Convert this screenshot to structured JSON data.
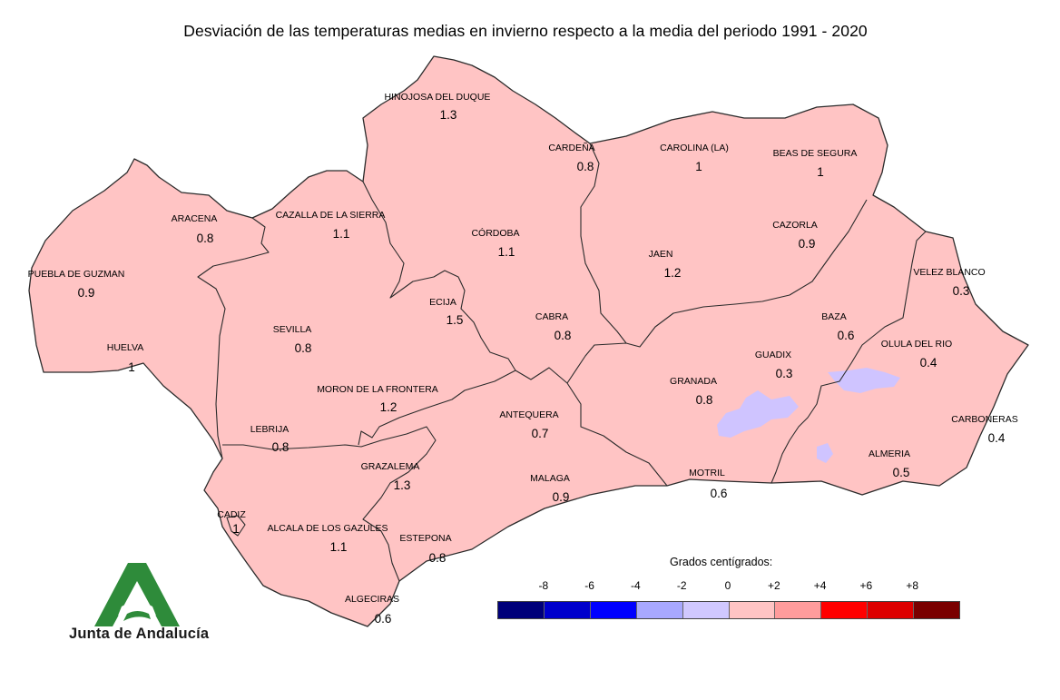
{
  "title": "Desviación de las temperaturas medias en invierno respecto a la media del periodo 1991 - 2020",
  "legend": {
    "caption": "Grados centígrados:",
    "ticks": [
      "-8",
      "-6",
      "-4",
      "-2",
      "0",
      "+2",
      "+4",
      "+6",
      "+8"
    ],
    "colors": [
      "#00007a",
      "#0000cc",
      "#0000ff",
      "#a8a8ff",
      "#d0c8ff",
      "#ffc4c4",
      "#ff9c9c",
      "#ff0000",
      "#dd0000",
      "#7a0000"
    ]
  },
  "logo": {
    "text": "Junta de Andalucía",
    "color": "#2e8b3a"
  },
  "stations": [
    {
      "name": "HINOJOSA DEL DUQUE",
      "value": "1.3"
    },
    {
      "name": "CARDEÑA",
      "value": "0.8"
    },
    {
      "name": "CAROLINA (LA)",
      "value": "1"
    },
    {
      "name": "BEAS DE SEGURA",
      "value": "1"
    },
    {
      "name": "ARACENA",
      "value": "0.8"
    },
    {
      "name": "CAZALLA DE LA SIERRA",
      "value": "1.1"
    },
    {
      "name": "CÓRDOBA",
      "value": "1.1"
    },
    {
      "name": "CAZORLA",
      "value": "0.9"
    },
    {
      "name": "PUEBLA DE GUZMAN",
      "value": "0.9"
    },
    {
      "name": "JAEN",
      "value": "1.2"
    },
    {
      "name": "VELEZ BLANCO",
      "value": "0.3"
    },
    {
      "name": "ECIJA",
      "value": "1.5"
    },
    {
      "name": "BAZA",
      "value": "0.6"
    },
    {
      "name": "SEVILLA",
      "value": "0.8"
    },
    {
      "name": "CABRA",
      "value": "0.8"
    },
    {
      "name": "OLULA DEL RIO",
      "value": "0.4"
    },
    {
      "name": "HUELVA",
      "value": "1"
    },
    {
      "name": "GUADIX",
      "value": "0.3"
    },
    {
      "name": "GRANADA",
      "value": "0.8"
    },
    {
      "name": "MORON DE LA FRONTERA",
      "value": "1.2"
    },
    {
      "name": "ANTEQUERA",
      "value": "0.7"
    },
    {
      "name": "CARBONERAS",
      "value": "0.4"
    },
    {
      "name": "LEBRIJA",
      "value": "0.8"
    },
    {
      "name": "ALMERIA",
      "value": "0.5"
    },
    {
      "name": "GRAZALEMA",
      "value": "1.3"
    },
    {
      "name": "MOTRIL",
      "value": "0.6"
    },
    {
      "name": "MALAGA",
      "value": "0.9"
    },
    {
      "name": "CADIZ",
      "value": "1"
    },
    {
      "name": "ALCALA DE LOS GAZULES",
      "value": "1.1"
    },
    {
      "name": "ESTEPONA",
      "value": "0.8"
    },
    {
      "name": "ALGECIRAS",
      "value": "0.6"
    }
  ]
}
